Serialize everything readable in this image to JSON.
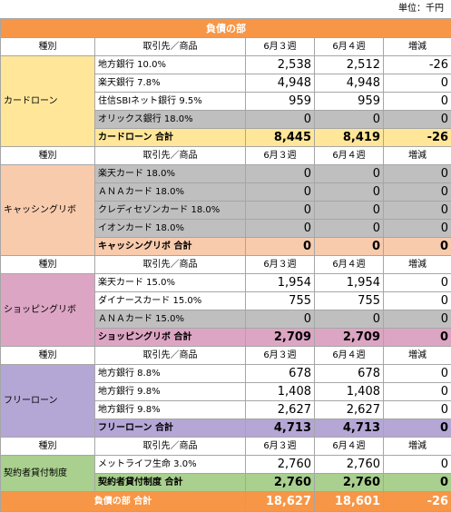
{
  "unit": "単位：千円",
  "title": "負債の部",
  "header": {
    "category": "種別",
    "item": "取引先／商品",
    "w3": "6月３週",
    "w4": "6月４週",
    "diff": "増減"
  },
  "sections": [
    {
      "category": "カードローン",
      "color": "#ffe699",
      "rows": [
        {
          "name": "地方銀行 10.0%",
          "w3": "2,538",
          "w4": "2,512",
          "diff": "-26",
          "gray": false
        },
        {
          "name": "楽天銀行 7.8%",
          "w3": "4,948",
          "w4": "4,948",
          "diff": "0",
          "gray": false
        },
        {
          "name": "住信SBIネット銀行 9.5%",
          "w3": "959",
          "w4": "959",
          "diff": "0",
          "gray": false
        },
        {
          "name": "オリックス銀行 18.0%",
          "w3": "0",
          "w4": "0",
          "diff": "0",
          "gray": true
        }
      ],
      "total": {
        "name": "カードローン 合計",
        "w3": "8,445",
        "w4": "8,419",
        "diff": "-26"
      }
    },
    {
      "category": "キャッシングリボ",
      "color": "#f8cbad",
      "rows": [
        {
          "name": "楽天カード 18.0%",
          "w3": "0",
          "w4": "0",
          "diff": "0",
          "gray": true
        },
        {
          "name": "ＡＮＡカード 18.0%",
          "w3": "0",
          "w4": "0",
          "diff": "0",
          "gray": true
        },
        {
          "name": "クレディセゾンカード 18.0%",
          "w3": "0",
          "w4": "0",
          "diff": "0",
          "gray": true
        },
        {
          "name": "イオンカード 18.0%",
          "w3": "0",
          "w4": "0",
          "diff": "0",
          "gray": true
        }
      ],
      "total": {
        "name": "キャッシングリボ 合計",
        "w3": "0",
        "w4": "0",
        "diff": "0"
      }
    },
    {
      "category": "ショッピングリボ",
      "color": "#dda5c4",
      "rows": [
        {
          "name": "楽天カード 15.0%",
          "w3": "1,954",
          "w4": "1,954",
          "diff": "0",
          "gray": false
        },
        {
          "name": "ダイナースカード 15.0%",
          "w3": "755",
          "w4": "755",
          "diff": "0",
          "gray": false
        },
        {
          "name": "ＡＮＡカード 15.0%",
          "w3": "0",
          "w4": "0",
          "diff": "0",
          "gray": true
        }
      ],
      "total": {
        "name": "ショッピングリボ 合計",
        "w3": "2,709",
        "w4": "2,709",
        "diff": "0"
      }
    },
    {
      "category": "フリーローン",
      "color": "#b4a7d6",
      "rows": [
        {
          "name": "地方銀行 8.8%",
          "w3": "678",
          "w4": "678",
          "diff": "0",
          "gray": false
        },
        {
          "name": "地方銀行 9.8%",
          "w3": "1,408",
          "w4": "1,408",
          "diff": "0",
          "gray": false
        },
        {
          "name": "地方銀行 9.8%",
          "w3": "2,627",
          "w4": "2,627",
          "diff": "0",
          "gray": false
        }
      ],
      "total": {
        "name": "フリーローン 合計",
        "w3": "4,713",
        "w4": "4,713",
        "diff": "0"
      }
    },
    {
      "category": "契約者貸付制度",
      "color": "#a9d08e",
      "rows": [
        {
          "name": "メットライフ生命 3.0%",
          "w3": "2,760",
          "w4": "2,760",
          "diff": "0",
          "gray": false
        }
      ],
      "total": {
        "name": "契約者貸付制度 合計",
        "w3": "2,760",
        "w4": "2,760",
        "diff": "0"
      }
    }
  ],
  "grand_total": {
    "name": "負債の部 合計",
    "w3": "18,627",
    "w4": "18,601",
    "diff": "-26"
  },
  "colors": {
    "title": "#f79646",
    "gray": "#bfbfbf"
  }
}
